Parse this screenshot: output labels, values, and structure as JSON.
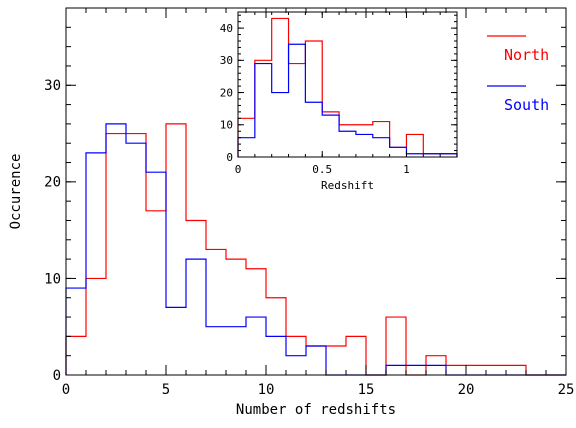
{
  "chart_data": [
    {
      "type": "histogram",
      "xlabel": "Number of redshifts",
      "ylabel": "Occurence",
      "xlim": [
        0,
        25
      ],
      "ylim": [
        0,
        38
      ],
      "xticks": [
        0,
        5,
        10,
        15,
        20,
        25
      ],
      "yticks": [
        0,
        10,
        20,
        30
      ],
      "bin_edges": [
        0,
        1,
        2,
        3,
        4,
        5,
        6,
        7,
        8,
        9,
        10,
        11,
        12,
        13,
        14,
        15,
        16,
        17,
        18,
        19,
        20,
        21,
        22,
        23,
        24,
        25
      ],
      "series": [
        {
          "name": "North",
          "color": "#ff0000",
          "values": [
            4,
            10,
            25,
            25,
            17,
            26,
            16,
            13,
            12,
            11,
            8,
            4,
            3,
            3,
            4,
            0,
            6,
            0,
            2,
            1,
            1,
            1,
            1,
            0,
            0
          ]
        },
        {
          "name": "South",
          "color": "#0000ff",
          "values": [
            9,
            23,
            26,
            24,
            21,
            7,
            12,
            5,
            5,
            6,
            4,
            2,
            3,
            0,
            0,
            0,
            1,
            1,
            1,
            0,
            0,
            0,
            0,
            0,
            0
          ]
        }
      ],
      "legend": {
        "position": "top-right",
        "items": [
          "North",
          "South"
        ]
      }
    },
    {
      "type": "histogram",
      "xlabel": "Redshift",
      "ylabel": "",
      "xlim": [
        0,
        1.3
      ],
      "ylim": [
        0,
        45
      ],
      "xticks": [
        0,
        0.5,
        1
      ],
      "xtick_labels": [
        "0",
        "0.5",
        "1"
      ],
      "yticks": [
        0,
        10,
        20,
        30,
        40
      ],
      "bin_edges": [
        0,
        0.1,
        0.2,
        0.3,
        0.4,
        0.5,
        0.6,
        0.7,
        0.8,
        0.9,
        1.0,
        1.1,
        1.2,
        1.3
      ],
      "series": [
        {
          "name": "North",
          "color": "#ff0000",
          "values": [
            12,
            30,
            43,
            29,
            36,
            14,
            10,
            10,
            11,
            3,
            7,
            1,
            1
          ]
        },
        {
          "name": "South",
          "color": "#0000ff",
          "values": [
            6,
            29,
            20,
            35,
            17,
            13,
            8,
            7,
            6,
            3,
            1,
            1,
            1
          ]
        }
      ]
    }
  ]
}
